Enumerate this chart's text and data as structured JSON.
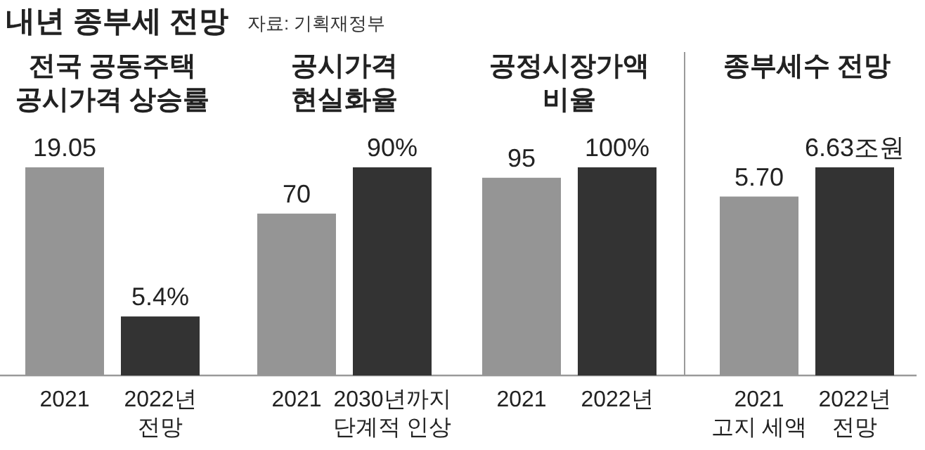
{
  "chart_data": [
    {
      "type": "bar",
      "title": "전국 공동주택\n공시가격 상승률",
      "categories": [
        "2021",
        "2022년\n전망"
      ],
      "values": [
        19.05,
        5.4
      ],
      "value_labels": [
        "19.05",
        "5.4%"
      ],
      "colors": [
        "#959595",
        "#333333"
      ],
      "annotations": [
        "내년 종부세 전망",
        "자료: 기획재정부"
      ]
    },
    {
      "type": "bar",
      "title": "공시가격\n현실화율",
      "categories": [
        "2021",
        "2030년까지\n단계적 인상"
      ],
      "values": [
        70,
        90
      ],
      "value_labels": [
        "70",
        "90%"
      ],
      "colors": [
        "#959595",
        "#333333"
      ]
    },
    {
      "type": "bar",
      "title": "공정시장가액\n비율",
      "categories": [
        "2021",
        "2022년"
      ],
      "values": [
        95,
        100
      ],
      "value_labels": [
        "95",
        "100%"
      ],
      "colors": [
        "#959595",
        "#333333"
      ]
    },
    {
      "type": "bar",
      "title": "종부세수 전망",
      "categories": [
        "2021\n고지 세액",
        "2022년\n전망"
      ],
      "values": [
        5.7,
        6.63
      ],
      "value_labels": [
        "5.70",
        "6.63조원"
      ],
      "colors": [
        "#959595",
        "#333333"
      ]
    }
  ]
}
